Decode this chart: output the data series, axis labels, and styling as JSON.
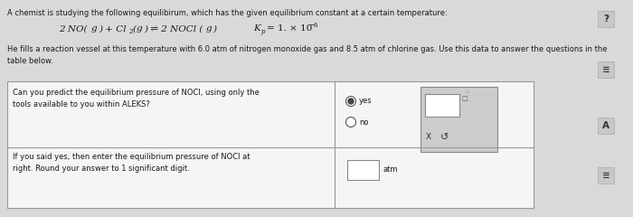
{
  "bg_color": "#d9d9d9",
  "title_line1": "A chemist is studying the following equilibirum, which has the given equilibrium constant at a certain temperature:",
  "body_text": "He fills a reaction vessel at this temperature with 6.0 atm of nitrogen monoxide gas and 8.5 atm of chlorine gas. Use this data to answer the questions in the\ntable below.",
  "table_q1": "Can you predict the equilibrium pressure of NOCl, using only the\ntools available to you within ALEKS?",
  "table_q2": "If you said yes, then enter the equilibrium pressure of NOCl at\nright. Round your answer to 1 significant digit.",
  "yes_label": "yes",
  "no_label": "no",
  "atm_label": "atm",
  "cell_bg": "#f5f5f5",
  "border_color": "#999999",
  "text_color": "#1a1a1a",
  "answer_box_bg": "#cccccc",
  "icon_bg": "#c8c8c8",
  "icon_border": "#aaaaaa"
}
